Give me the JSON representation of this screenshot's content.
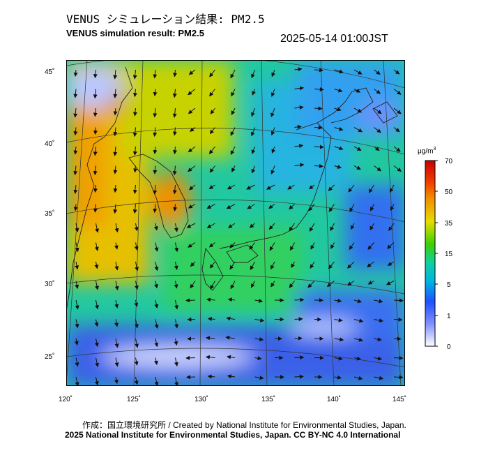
{
  "title_jp": "VENUS シミュレーション結果: PM2.5",
  "title_en": "VENUS simulation result: PM2.5",
  "timestamp": "2025-05-14 01:00JST",
  "map": {
    "lat_ticks": [
      "45˚",
      "40˚",
      "35˚",
      "30˚",
      "25˚"
    ],
    "lon_ticks": [
      "120˚",
      "125˚",
      "130˚",
      "135˚",
      "140˚",
      "145˚"
    ]
  },
  "colorbar": {
    "unit": "μg/m",
    "unit_sup": "3",
    "labels": [
      "70",
      "50",
      "35",
      "15",
      "5",
      "1",
      "0"
    ],
    "colors": [
      "#d40000",
      "#f07800",
      "#f5c800",
      "#5ad200",
      "#00c8c8",
      "#2864ff",
      "#ffffff"
    ]
  },
  "credit_line1": "作成：国立環境研究所 / Created by National Institute for Environmental Studies, Japan.",
  "credit_line2": "2025 National Institute for Environmental Studies, Japan. CC BY-NC 4.0 International"
}
